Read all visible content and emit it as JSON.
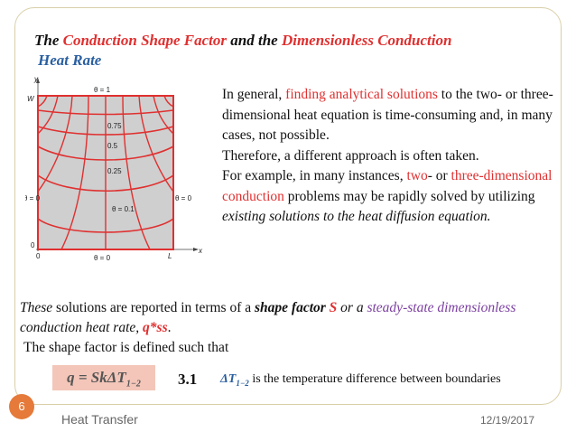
{
  "title": {
    "part1": "The ",
    "part2": "Conduction Shape Factor",
    "part3": " and the ",
    "part4": "Dimensionless Conduction",
    "part5": "Heat Rate"
  },
  "figure": {
    "y_axis": "y",
    "x_axis": "x",
    "w_label": "W",
    "origin": "0",
    "origin_x": "0",
    "l_label": "L",
    "top_bc": "θ = 1",
    "left_bc": "θ = 0",
    "right_bc": "θ = 0",
    "bottom_bc": "θ = 0",
    "iso_075": "0.75",
    "iso_05": "0.5",
    "iso_025": "0.25",
    "iso_01": "θ = 0.1"
  },
  "paragraph": {
    "s1": "In general, ",
    "s2": "finding analytical solutions",
    "s3": " to the two- or three-dimensional heat equation is time-consuming and, in many cases, not possible.",
    "s4": "Therefore, a different approach is often taken.",
    "s5": "For example, in many instances, ",
    "s6": "two",
    "s7": "- or ",
    "s8": "three-dimensional conduction",
    "s9": " problems may be rapidly solved by utilizing ",
    "s10": "existing solutions to the heat diffusion equation."
  },
  "lower": {
    "l1": "These",
    "l2": " solutions are reported in terms of a ",
    "l3": "shape factor ",
    "l4": "S",
    "l5": " or a ",
    "l6": "steady-state dimensionless",
    "l7": " conduction heat rate, ",
    "l8": "q*ss",
    "l9": ".",
    "l10": "The shape factor is defined such that"
  },
  "equation": {
    "text": "q = SkΔT",
    "sub": "1−2",
    "number": "3.1"
  },
  "delta_note": {
    "symbol": "ΔT",
    "sub": "1−2",
    "text": " is the temperature difference between boundaries"
  },
  "footer": {
    "slide_number": "6",
    "left": "Heat Transfer",
    "date": "12/19/2017"
  }
}
